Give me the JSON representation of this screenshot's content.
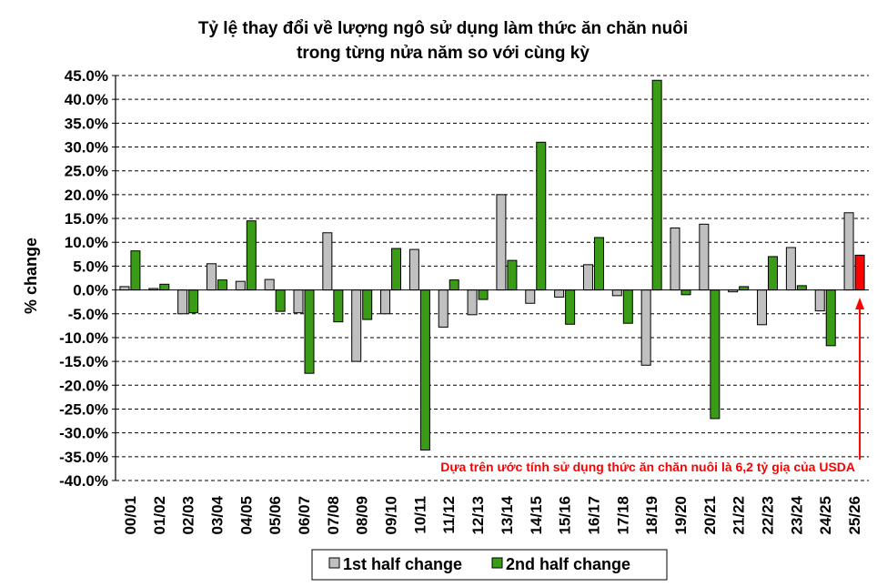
{
  "chart_data": {
    "type": "bar",
    "title_line1": "Tỷ lệ thay đổi về lượng ngô sử dụng làm thức ăn chăn nuôi",
    "title_line2": "trong từng nửa năm so với cùng kỳ",
    "ylabel": "% change",
    "xlabel": "",
    "ylim": [
      -40,
      45
    ],
    "ytick_step": 5,
    "ytick_labels": [
      "45.0%",
      "40.0%",
      "35.0%",
      "30.0%",
      "25.0%",
      "20.0%",
      "15.0%",
      "10.0%",
      "5.0%",
      "0.0%",
      "-5.0%",
      "-10.0%",
      "-15.0%",
      "-20.0%",
      "-25.0%",
      "-30.0%",
      "-35.0%",
      "-40.0%"
    ],
    "grid": "dashed horizontal",
    "categories": [
      "00/01",
      "01/02",
      "02/03",
      "03/04",
      "04/05",
      "05/06",
      "06/07",
      "07/08",
      "08/09",
      "09/10",
      "10/11",
      "11/12",
      "12/13",
      "13/14",
      "14/15",
      "15/16",
      "16/17",
      "17/18",
      "18/19",
      "19/20",
      "20/21",
      "21/22",
      "22/23",
      "23/24",
      "24/25",
      "25/26"
    ],
    "series": [
      {
        "name": "1st half change",
        "color": "#c0c0c0",
        "values": [
          0.7,
          0.3,
          -5.0,
          5.5,
          1.8,
          2.2,
          -4.8,
          12.0,
          -15.0,
          -5.0,
          8.5,
          -7.8,
          -5.2,
          20.0,
          -2.8,
          -1.5,
          5.3,
          -1.2,
          -15.8,
          13.0,
          13.8,
          -0.4,
          -7.3,
          8.9,
          -4.4,
          16.2
        ]
      },
      {
        "name": "2nd half change",
        "color": "#3a9b16",
        "values": [
          8.2,
          1.2,
          -4.8,
          2.1,
          14.5,
          -4.5,
          -17.5,
          -6.7,
          -6.2,
          8.7,
          -33.6,
          2.1,
          -2.0,
          6.2,
          31.0,
          -7.2,
          11.0,
          -7.0,
          44.0,
          -1.0,
          -27.0,
          0.7,
          7.0,
          0.9,
          -11.7,
          7.3
        ]
      }
    ],
    "highlight": {
      "category": "25/26",
      "series": "2nd half change",
      "color": "#ff0000"
    },
    "annotation": "Dựa trên ước tính sử dụng thức ăn chăn nuôi là 6,2 tỷ giạ của USDA",
    "legend_position": "bottom"
  }
}
